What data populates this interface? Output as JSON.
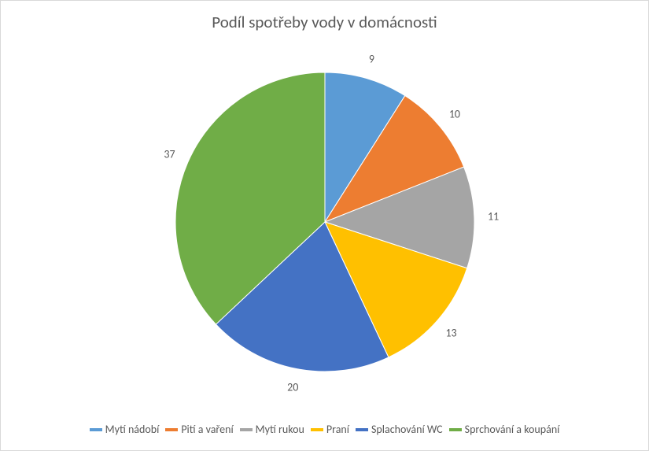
{
  "chart": {
    "type": "pie",
    "title": "Podíl spotřeby vody v domácnosti",
    "title_fontsize": 21,
    "title_color": "#595959",
    "background_color": "#ffffff",
    "border_color": "#d9d9d9",
    "label_fontsize": 14,
    "label_color": "#595959",
    "legend_fontsize": 14,
    "legend_color": "#595959",
    "legend_swatch_width": 16,
    "legend_swatch_height": 4,
    "radius": 190,
    "start_angle_deg": -90,
    "data_label_offset_factor": 1.13,
    "series": [
      {
        "label": "Mytí nádobí",
        "value": 9,
        "color": "#5b9bd5"
      },
      {
        "label": "Pití a vaření",
        "value": 10,
        "color": "#ed7d31"
      },
      {
        "label": "Mytí rukou",
        "value": 11,
        "color": "#a5a5a5"
      },
      {
        "label": "Praní",
        "value": 13,
        "color": "#ffc000"
      },
      {
        "label": "Splachování WC",
        "value": 20,
        "color": "#4472c4"
      },
      {
        "label": "Sprchování a koupání",
        "value": 37,
        "color": "#70ad47"
      }
    ]
  }
}
